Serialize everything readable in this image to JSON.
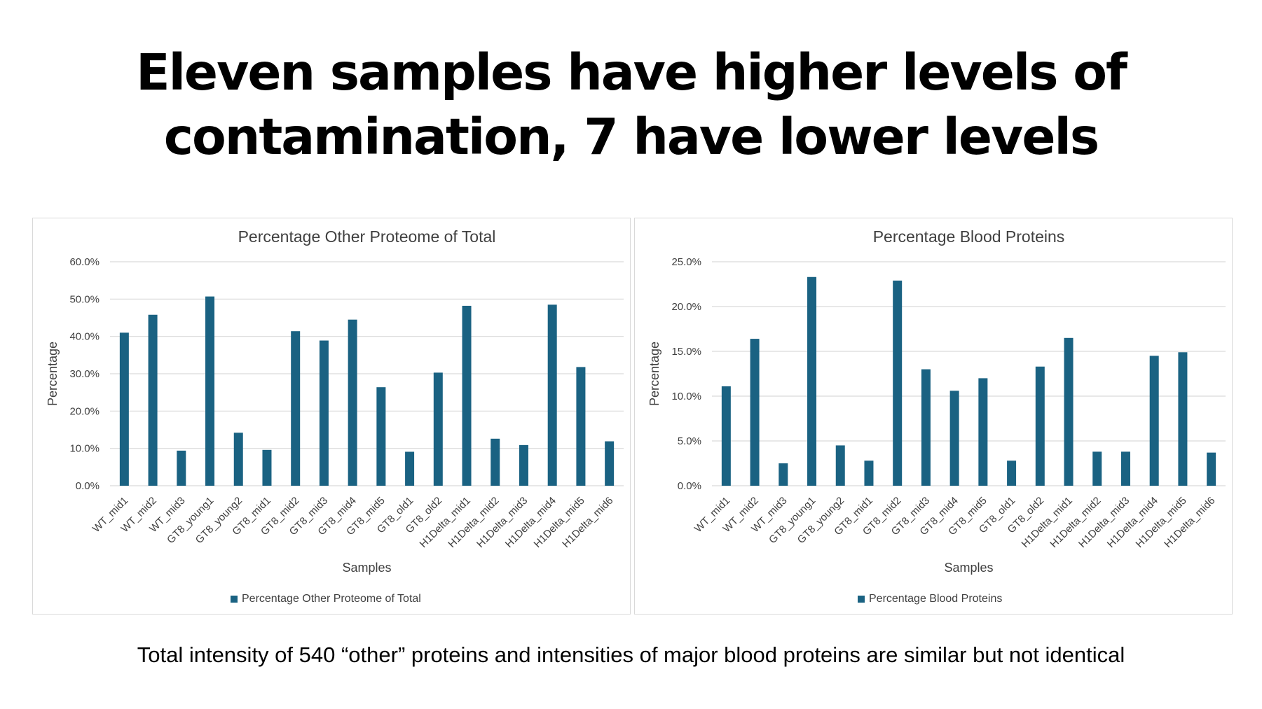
{
  "headline": {
    "line1": "Eleven samples have higher levels of",
    "line2": "contamination, 7 have lower levels"
  },
  "caption": "Total intensity of 540 “other” proteins and intensities of major blood proteins are similar but not identical",
  "colors": {
    "bar": "#1a6282",
    "grid": "#d9d9d9",
    "text": "#404040"
  },
  "chart_data": [
    {
      "type": "bar",
      "title": "Percentage Other Proteome of Total",
      "xlabel": "Samples",
      "ylabel": "Percentage",
      "ylim": [
        0,
        60
      ],
      "yticks": [
        "0.0%",
        "10.0%",
        "20.0%",
        "30.0%",
        "40.0%",
        "50.0%",
        "60.0%"
      ],
      "grid": true,
      "legend_position": "bottom",
      "categories": [
        "WT_mid1",
        "WT_mid2",
        "WT_mid3",
        "GT8_young1",
        "GT8_young2",
        "GT8_mid1",
        "GT8_mid2",
        "GT8_mid3",
        "GT8_mid4",
        "GT8_mid5",
        "GT8_old1",
        "GT8_old2",
        "H1Delta_mid1",
        "H1Delta_mid2",
        "H1Delta_mid3",
        "H1Delta_mid4",
        "H1Delta_mid5",
        "H1Delta_mid6"
      ],
      "series": [
        {
          "name": "Percentage Other Proteome of Total",
          "values": [
            41.0,
            45.8,
            9.4,
            50.7,
            14.2,
            9.6,
            41.4,
            38.9,
            44.5,
            26.4,
            9.1,
            30.3,
            48.2,
            12.6,
            10.9,
            48.5,
            31.8,
            11.9
          ]
        }
      ]
    },
    {
      "type": "bar",
      "title": "Percentage Blood Proteins",
      "xlabel": "Samples",
      "ylabel": "Percentage",
      "ylim": [
        0,
        25
      ],
      "yticks": [
        "0.0%",
        "5.0%",
        "10.0%",
        "15.0%",
        "20.0%",
        "25.0%"
      ],
      "grid": true,
      "legend_position": "bottom",
      "categories": [
        "WT_mid1",
        "WT_mid2",
        "WT_mid3",
        "GT8_young1",
        "GT8_young2",
        "GT8_mid1",
        "GT8_mid2",
        "GT8_mid3",
        "GT8_mid4",
        "GT8_mid5",
        "GT8_old1",
        "GT8_old2",
        "H1Delta_mid1",
        "H1Delta_mid2",
        "H1Delta_mid3",
        "H1Delta_mid4",
        "H1Delta_mid5",
        "H1Delta_mid6"
      ],
      "series": [
        {
          "name": "Percentage Blood Proteins",
          "values": [
            11.1,
            16.4,
            2.5,
            23.3,
            4.5,
            2.8,
            22.9,
            13.0,
            10.6,
            12.0,
            2.8,
            13.3,
            16.5,
            3.8,
            3.8,
            14.5,
            14.9,
            3.7
          ]
        }
      ]
    }
  ]
}
